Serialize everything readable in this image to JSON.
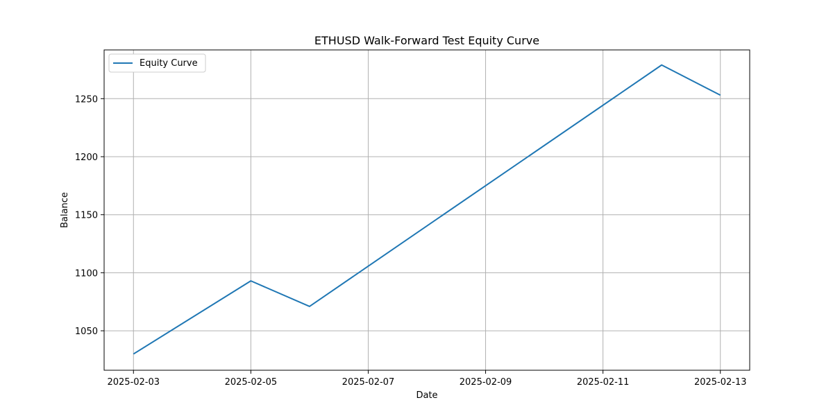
{
  "chart_data": {
    "type": "line",
    "title": "ETHUSD Walk-Forward Test Equity Curve",
    "xlabel": "Date",
    "ylabel": "Balance",
    "x": [
      "2025-02-03",
      "2025-02-05",
      "2025-02-06",
      "2025-02-12",
      "2025-02-13"
    ],
    "series": [
      {
        "name": "Equity Curve",
        "color": "#1f77b4",
        "values": [
          1030,
          1093,
          1071,
          1279,
          1253
        ]
      }
    ],
    "xlim": [
      "2025-02-02T12:00",
      "2025-02-13T12:00"
    ],
    "ylim": [
      1016,
      1292
    ],
    "xticks": [
      "2025-02-03",
      "2025-02-05",
      "2025-02-07",
      "2025-02-09",
      "2025-02-11",
      "2025-02-13"
    ],
    "yticks": [
      1050,
      1100,
      1150,
      1200,
      1250
    ],
    "grid": true,
    "legend": "top-left"
  }
}
